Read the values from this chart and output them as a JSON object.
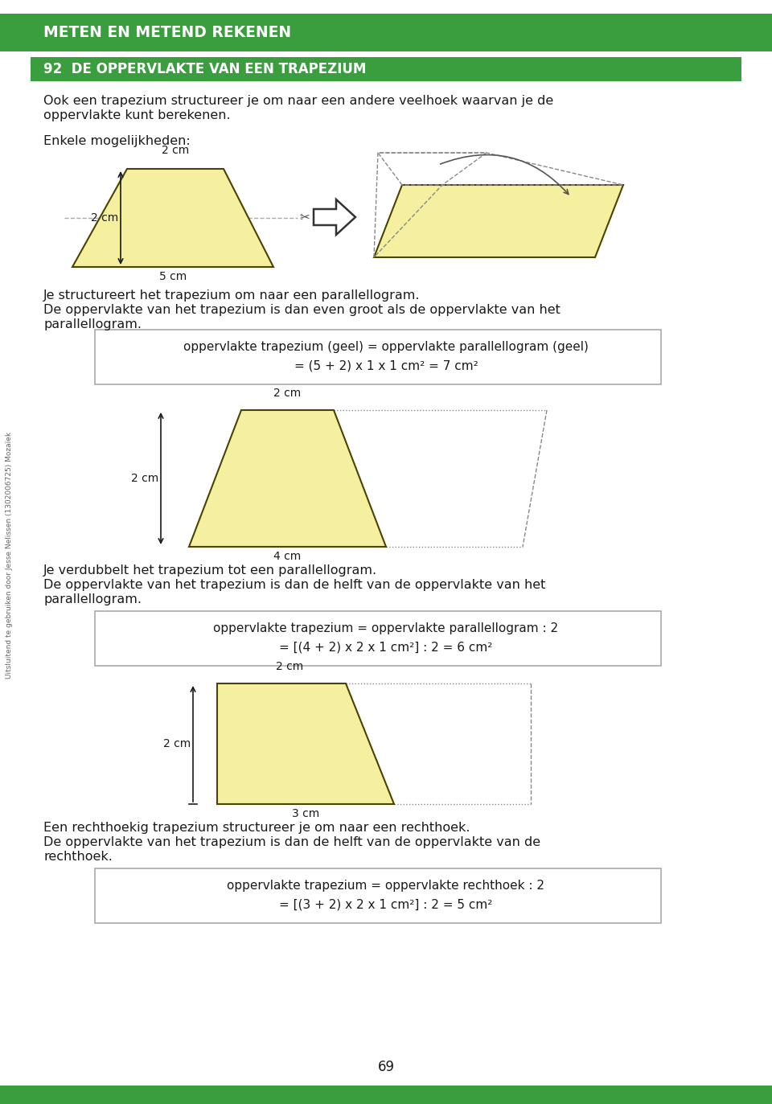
{
  "page_bg": "#ffffff",
  "header_green": "#3a9e3f",
  "header_text": "METEN EN METEND REKENEN",
  "subheader_text": "92  DE OPPERVLAKTE VAN EEN TRAPEZIUM",
  "dark_text": "#1a1a1a",
  "yellow_fill": "#f5f0a0",
  "yellow_stroke": "#4a4400",
  "gray_dash": "#888888",
  "sidebar_text": "Uitsluitend te gebruiken door Jesse Nelissen (1302006725) Mozaïek",
  "page_number": "69",
  "box1_line1": "oppervlakte trapezium (geel) = oppervlakte parallellogram (geel)",
  "box1_line2": "= (5 + 2) x 1 x 1 cm² = 7 cm²",
  "box2_line1": "oppervlakte trapezium = oppervlakte parallellogram : 2",
  "box2_line2": "= [(4 + 2) x 2 x 1 cm²] : 2 = 6 cm²",
  "box3_line1": "oppervlakte trapezium = oppervlakte rechthoek : 2",
  "box3_line2": "= [(3 + 2) x 2 x 1 cm²] : 2 = 5 cm²",
  "intro1": "Ook een trapezium structureer je om naar een andere veelhoek waarvan je de",
  "intro2": "oppervlakte kunt berekenen.",
  "enkele": "Enkele mogelijkheden:",
  "para1_text1": "Je structureert het trapezium om naar een parallellogram.",
  "para1_text2": "De oppervlakte van het trapezium is dan even groot als de oppervlakte van het",
  "para1_text3": "parallellogram.",
  "para2_text1": "Je verdubbelt het trapezium tot een parallellogram.",
  "para2_text2": "De oppervlakte van het trapezium is dan de helft van de oppervlakte van het",
  "para2_text3": "parallellogram.",
  "para3_text1": "Een rechthoekig trapezium structureer je om naar een rechthoek.",
  "para3_text2": "De oppervlakte van het trapezium is dan de helft van de oppervlakte van de",
  "para3_text3": "rechthoek."
}
